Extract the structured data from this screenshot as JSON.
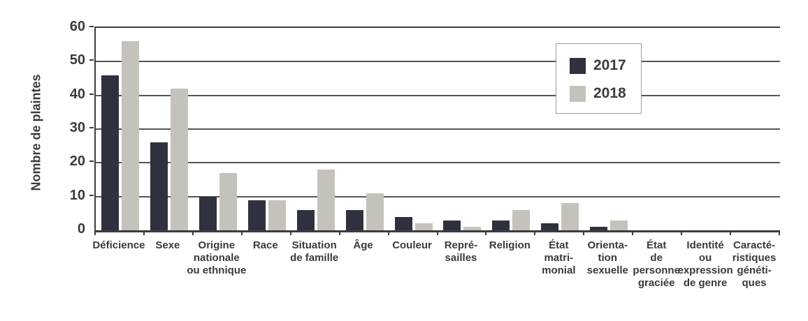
{
  "chart_data": {
    "type": "bar",
    "title": "",
    "xlabel": "",
    "ylabel": "Nombre de plaintes",
    "ylim": [
      0,
      60
    ],
    "yticks": [
      0,
      10,
      20,
      30,
      40,
      50,
      60
    ],
    "grid": true,
    "legend_position": "top-right-inside",
    "categories": [
      "Déficience",
      "Sexe",
      "Origine nationale ou ethnique",
      "Race",
      "Situation de famille",
      "Âge",
      "Couleur",
      "Représailles",
      "Religion",
      "État matrimonial",
      "Orientation sexuelle",
      "État de personne graciée",
      "Identité ou expression de genre",
      "Caractéristiques génétiques"
    ],
    "category_label_lines": [
      [
        "Déficience"
      ],
      [
        "Sexe"
      ],
      [
        "Origine",
        "nationale",
        "ou ethnique"
      ],
      [
        "Race"
      ],
      [
        "Situation",
        "de famille"
      ],
      [
        "Âge"
      ],
      [
        "Couleur"
      ],
      [
        "Repré-",
        "sailles"
      ],
      [
        "Religion"
      ],
      [
        "État",
        "matri-",
        "monial"
      ],
      [
        "Orienta-",
        "tion",
        "sexuelle"
      ],
      [
        "État",
        "de",
        "personne",
        "graciée"
      ],
      [
        "Identité",
        "ou",
        "expression",
        "de genre"
      ],
      [
        "Caracté-",
        "ristiques",
        "généti-",
        "ques"
      ]
    ],
    "series": [
      {
        "name": "2017",
        "color": "#2f323e",
        "values": [
          46,
          26,
          10,
          9,
          6,
          6,
          4,
          3,
          3,
          2,
          1,
          0,
          0,
          0
        ]
      },
      {
        "name": "2018",
        "color": "#c5c2bc",
        "values": [
          56,
          42,
          17,
          9,
          18,
          11,
          2,
          1,
          6,
          8,
          3,
          0,
          0,
          0
        ]
      }
    ]
  },
  "colors": {
    "axis": "#3c3c3c",
    "gridline": "#555555",
    "text": "#3a3a3a",
    "background": "#ffffff",
    "legend_border": "#9b9b9b"
  }
}
